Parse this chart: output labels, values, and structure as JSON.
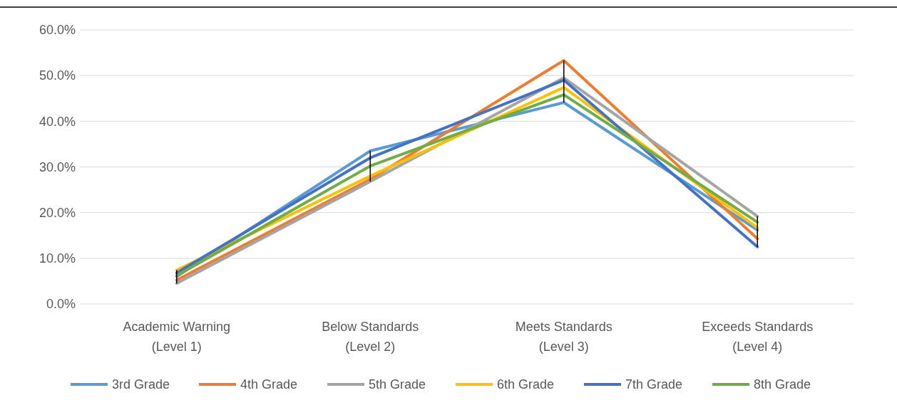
{
  "chart_data": {
    "type": "line",
    "categories": [
      "Academic Warning\n(Level 1)",
      "Below Standards\n(Level 2)",
      "Meets Standards\n(Level 3)",
      "Exceeds Standards\n(Level 4)"
    ],
    "series": [
      {
        "name": "3rd Grade",
        "color": "#5b9bd5",
        "values": [
          6.0,
          33.5,
          44.1,
          16.2
        ]
      },
      {
        "name": "4th Grade",
        "color": "#ed7d31",
        "values": [
          5.2,
          27.3,
          53.3,
          14.3
        ]
      },
      {
        "name": "5th Grade",
        "color": "#a5a5a5",
        "values": [
          4.5,
          26.8,
          49.5,
          19.2
        ]
      },
      {
        "name": "6th Grade",
        "color": "#ffc000",
        "values": [
          7.4,
          28.0,
          47.4,
          16.7
        ]
      },
      {
        "name": "7th Grade",
        "color": "#4472c4",
        "values": [
          6.8,
          32.0,
          49.0,
          12.5
        ]
      },
      {
        "name": "8th Grade",
        "color": "#70ad47",
        "values": [
          6.2,
          30.2,
          45.8,
          17.9
        ]
      }
    ],
    "ylim": [
      0,
      60
    ],
    "yticks": [
      {
        "value": 0,
        "label": "0.0%"
      },
      {
        "value": 10,
        "label": "10.0%"
      },
      {
        "value": 20,
        "label": "20.0%"
      },
      {
        "value": 30,
        "label": "30.0%"
      },
      {
        "value": 40,
        "label": "40.0%"
      },
      {
        "value": 50,
        "label": "50.0%"
      },
      {
        "value": 60,
        "label": "60.0%"
      }
    ],
    "grid": "y",
    "legend": "bottom",
    "marker": "none",
    "line_style": "solid"
  }
}
